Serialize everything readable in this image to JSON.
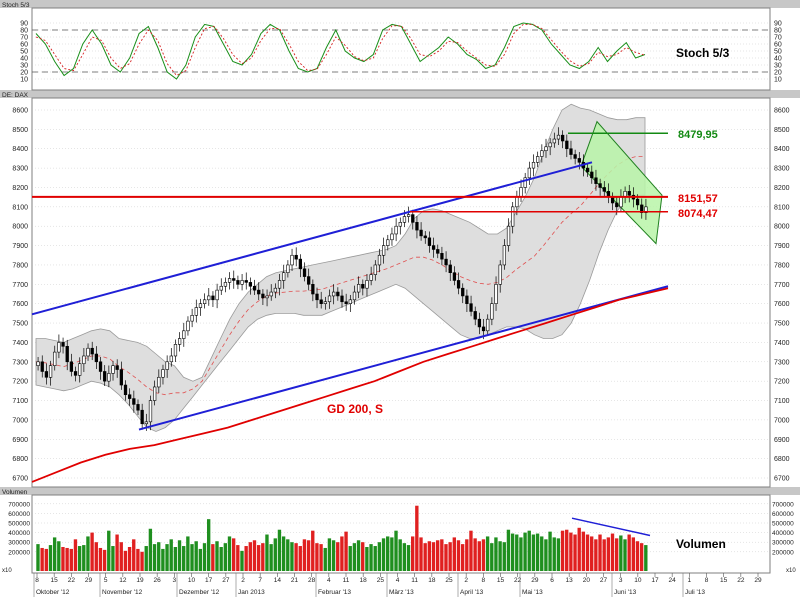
{
  "colors": {
    "panel_header": "#c7c7c7",
    "frame": "#7f7f7f",
    "grid": "#bfbfbf",
    "stoch_k": "#1a8f1a",
    "stoch_d": "#d62020",
    "ma200": "#e00000",
    "trend_channel": "#1f1fd6",
    "level_green": "#138a13",
    "level_red": "#e00000",
    "bands_fill": "#dedede",
    "bands_stroke": "#9a9a9a",
    "mid_band": "#e05050",
    "wedge_fill": "#b8f4a8",
    "wedge_stroke": "#1f7f1f",
    "vol_up": "#1f8f1f",
    "vol_down": "#e02020",
    "vol_trend": "#1f1fd6"
  },
  "stoch_panel": {
    "header": "Stoch 5/3",
    "label": "Stoch 5/3",
    "ticks": [
      "90",
      "80",
      "70",
      "60",
      "50",
      "40",
      "30",
      "20",
      "10"
    ]
  },
  "price_panel": {
    "header": "DE: DAX",
    "ticks": [
      "8600",
      "8500",
      "8400",
      "8300",
      "8200",
      "8100",
      "8000",
      "7900",
      "7800",
      "7700",
      "7600",
      "7500",
      "7400",
      "7300",
      "7200",
      "7100",
      "7000",
      "6900",
      "6800",
      "6700"
    ],
    "ma_label": "GD 200, S",
    "levels": [
      {
        "label": "8479,95",
        "value": 8479.95
      },
      {
        "label": "8151,57",
        "value": 8151.57
      },
      {
        "label": "8074,47",
        "value": 8074.47
      }
    ]
  },
  "volume_panel": {
    "header": "Volumen",
    "label": "Volumen",
    "ticks": [
      "700000",
      "600000",
      "500000",
      "400000",
      "300000",
      "200000"
    ],
    "corner_label": "x10"
  },
  "x_axis": {
    "day_ticks": [
      "8",
      "15",
      "22",
      "29",
      "5",
      "12",
      "19",
      "26",
      "3",
      "10",
      "17",
      "27",
      "2",
      "7",
      "14",
      "21",
      "28",
      "4",
      "11",
      "18",
      "25",
      "4",
      "11",
      "18",
      "25",
      "2",
      "8",
      "15",
      "22",
      "29",
      "6",
      "13",
      "20",
      "27",
      "3",
      "10",
      "17",
      "24",
      "1",
      "8",
      "15",
      "22",
      "29"
    ],
    "months": [
      "Oktober '12",
      "November '12",
      "Dezember '12",
      "Jan 2013",
      "Februar '13",
      "März '13",
      "April '13",
      "Mai '13",
      "Juni '13",
      "Juli '13"
    ],
    "corner_label": "x10"
  },
  "chart_data": {
    "type": "candlestick",
    "title": "",
    "instrument": "DE: DAX",
    "period": "Oktober '12 – Juli '13",
    "price": {
      "ylim": [
        6650,
        8650
      ],
      "close": [
        7300,
        7250,
        7220,
        7280,
        7350,
        7400,
        7380,
        7300,
        7250,
        7230,
        7290,
        7330,
        7370,
        7340,
        7300,
        7250,
        7200,
        7240,
        7280,
        7260,
        7180,
        7130,
        7110,
        7080,
        7050,
        6980,
        6990,
        7100,
        7170,
        7220,
        7260,
        7300,
        7330,
        7390,
        7420,
        7460,
        7510,
        7540,
        7580,
        7600,
        7620,
        7640,
        7620,
        7670,
        7690,
        7710,
        7730,
        7720,
        7700,
        7720,
        7710,
        7690,
        7670,
        7650,
        7630,
        7640,
        7660,
        7680,
        7720,
        7760,
        7800,
        7850,
        7830,
        7780,
        7740,
        7700,
        7650,
        7620,
        7600,
        7610,
        7640,
        7660,
        7640,
        7610,
        7600,
        7620,
        7660,
        7700,
        7680,
        7720,
        7750,
        7800,
        7850,
        7900,
        7930,
        7960,
        8000,
        8020,
        8050,
        8060,
        8020,
        7980,
        7950,
        7940,
        7900,
        7880,
        7860,
        7830,
        7800,
        7760,
        7720,
        7680,
        7640,
        7600,
        7560,
        7520,
        7480,
        7460,
        7520,
        7600,
        7700,
        7800,
        7900,
        8000,
        8100,
        8150,
        8200,
        8250,
        8300,
        8330,
        8360,
        8390,
        8410,
        8430,
        8450,
        8470,
        8440,
        8400,
        8370,
        8350,
        8330,
        8300,
        8280,
        8250,
        8220,
        8200,
        8180,
        8150,
        8120,
        8100,
        8150,
        8180,
        8160,
        8140,
        8110,
        8070,
        8100
      ],
      "bollinger_upper_approx": [
        7420,
        7420,
        7410,
        7400,
        7420,
        7440,
        7460,
        7470,
        7460,
        7420,
        7410,
        7400,
        7380,
        7340,
        7300,
        7280,
        7220,
        7200,
        7220,
        7320,
        7420,
        7520,
        7600,
        7660,
        7700,
        7740,
        7760,
        7770,
        7780,
        7790,
        7800,
        7810,
        7820,
        7830,
        7840,
        7850,
        7860,
        7870,
        7880,
        7900,
        7960,
        8040,
        8080,
        8090,
        8080,
        8060,
        8040,
        8020,
        7990,
        7960,
        7960,
        7990,
        8070,
        8150,
        8250,
        8380,
        8500,
        8600,
        8630,
        8610,
        8600,
        8580,
        8560,
        8550,
        8550,
        8560,
        8560
      ],
      "bollinger_lower_approx": [
        7180,
        7170,
        7160,
        7150,
        7160,
        7180,
        7200,
        7190,
        7170,
        7130,
        7080,
        7020,
        6960,
        6940,
        6960,
        7000,
        7060,
        7120,
        7180,
        7240,
        7300,
        7360,
        7420,
        7480,
        7520,
        7540,
        7550,
        7550,
        7550,
        7540,
        7540,
        7540,
        7560,
        7580,
        7600,
        7620,
        7640,
        7660,
        7680,
        7700,
        7680,
        7640,
        7600,
        7560,
        7520,
        7480,
        7440,
        7420,
        7420,
        7440,
        7460,
        7480,
        7480,
        7470,
        7440,
        7420,
        7420,
        7440,
        7500,
        7600,
        7720,
        7860,
        7980,
        8080,
        8140,
        8160,
        8160
      ],
      "ma200_approx": [
        6680,
        6730,
        6780,
        6820,
        6850,
        6870,
        6900,
        6930,
        6960,
        7000,
        7040,
        7080,
        7120,
        7160,
        7200,
        7250,
        7300,
        7340,
        7380,
        7420,
        7460,
        7500,
        7540,
        7580,
        7620,
        7650,
        7680
      ],
      "trend_channel_upper": [
        {
          "x": "start",
          "y": 7545
        },
        {
          "x": "~20. Mai '13",
          "y": 8330
        }
      ],
      "trend_channel_lower": [
        {
          "x": "~19. Nov '12",
          "y": 6950
        },
        {
          "x": "~Juli '13",
          "y": 7690
        }
      ],
      "wedge": {
        "start": "~23. Mai '13",
        "end": "~17. Juni '13",
        "upper": [
          8540,
          8160
        ],
        "lower": [
          8310,
          7910
        ]
      }
    },
    "stochastic": {
      "ylim": [
        0,
        100
      ],
      "levels": [
        20,
        80
      ],
      "k_approx": [
        75,
        60,
        35,
        15,
        25,
        60,
        80,
        60,
        30,
        20,
        40,
        75,
        85,
        55,
        20,
        10,
        30,
        70,
        88,
        85,
        60,
        35,
        30,
        45,
        75,
        88,
        80,
        50,
        25,
        20,
        25,
        55,
        80,
        50,
        40,
        35,
        45,
        80,
        88,
        85,
        60,
        35,
        45,
        55,
        70,
        60,
        45,
        38,
        25,
        30,
        55,
        85,
        90,
        88,
        80,
        60,
        45,
        30,
        25,
        35,
        55,
        35,
        50,
        62,
        40,
        45
      ],
      "d_approx": [
        70,
        65,
        45,
        25,
        22,
        45,
        70,
        65,
        40,
        25,
        32,
        60,
        80,
        65,
        32,
        15,
        22,
        55,
        82,
        85,
        68,
        45,
        32,
        40,
        65,
        82,
        82,
        60,
        35,
        22,
        24,
        45,
        70,
        58,
        42,
        36,
        40,
        68,
        86,
        86,
        68,
        45,
        42,
        50,
        64,
        62,
        50,
        40,
        30,
        28,
        45,
        75,
        88,
        88,
        82,
        66,
        50,
        36,
        28,
        32,
        48,
        42,
        45,
        55,
        48,
        44
      ]
    },
    "volume": {
      "ylim": [
        0,
        750000
      ],
      "values_approx": [
        280000,
        240000,
        230000,
        270000,
        350000,
        310000,
        250000,
        240000,
        230000,
        330000,
        260000,
        270000,
        360000,
        400000,
        300000,
        240000,
        220000,
        420000,
        260000,
        380000,
        300000,
        210000,
        250000,
        330000,
        230000,
        200000,
        260000,
        440000,
        280000,
        300000,
        230000,
        280000,
        330000,
        250000,
        320000,
        260000,
        360000,
        280000,
        310000,
        230000,
        290000,
        540000,
        280000,
        310000,
        250000,
        290000,
        360000,
        340000,
        270000,
        210000,
        260000,
        300000,
        320000,
        270000,
        290000,
        380000,
        280000,
        340000,
        430000,
        360000,
        330000,
        300000,
        290000,
        260000,
        330000,
        320000,
        420000,
        290000,
        280000,
        240000,
        340000,
        320000,
        300000,
        360000,
        410000,
        260000,
        290000,
        320000,
        300000,
        250000,
        280000,
        260000,
        300000,
        340000,
        360000,
        350000,
        420000,
        330000,
        290000,
        270000,
        360000,
        680000,
        350000,
        290000,
        310000,
        300000,
        320000,
        330000,
        280000,
        300000,
        350000,
        320000,
        280000,
        330000,
        420000,
        340000,
        310000,
        330000,
        360000,
        290000,
        350000,
        310000,
        300000,
        430000,
        390000,
        380000,
        350000,
        400000,
        420000,
        380000,
        390000,
        360000,
        330000,
        410000,
        350000,
        340000,
        420000,
        430000,
        400000,
        380000,
        450000,
        410000,
        380000,
        360000,
        330000,
        380000,
        330000,
        350000,
        390000,
        340000,
        370000,
        330000,
        380000,
        350000,
        310000,
        290000,
        270000
      ],
      "trend_line": {
        "from": 550000,
        "to": 370000
      }
    }
  }
}
